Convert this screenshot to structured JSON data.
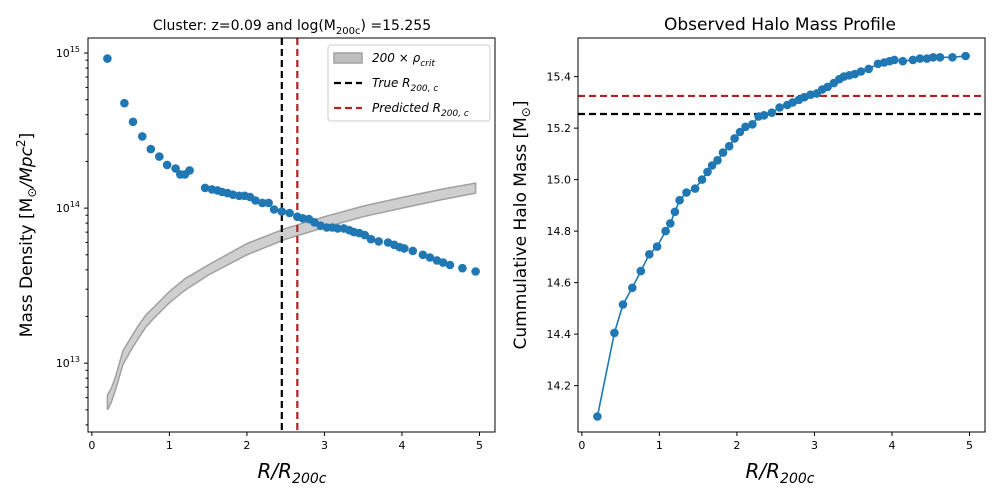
{
  "chart_data": [
    {
      "type": "scatter",
      "title": "Cluster: z=0.09 and log(M",
      "title_sub": "200c",
      "title_tail": ") =15.255",
      "xlabel": "R/R",
      "xlabel_sub": "200c",
      "ylabel": "Mass Density [M",
      "ylabel_sub": "⊙",
      "ylabel_mid": "/Mpc",
      "ylabel_sup": "2",
      "ylabel_end": "]",
      "xscale": "linear",
      "yscale": "log",
      "xlim": [
        -0.05,
        5.2
      ],
      "ylim": [
        3600000000000.0,
        1250000000000000.0
      ],
      "grid": false,
      "legend_position": "top-right",
      "xticks": [
        0,
        1,
        2,
        3,
        4,
        5
      ],
      "xtick_labels": [
        "0",
        "1",
        "2",
        "3",
        "4",
        "5"
      ],
      "yticks": [
        10000000000000.0,
        100000000000000.0,
        1000000000000000.0
      ],
      "ytick_labels": [
        {
          "base": "10",
          "exp": "13"
        },
        {
          "base": "10",
          "exp": "14"
        },
        {
          "base": "10",
          "exp": "15"
        }
      ],
      "legend": [
        {
          "label": "200 × ρ",
          "sub": "crit",
          "kind": "band",
          "color": "#bfbfbf"
        },
        {
          "label": "True R",
          "sub": "200, c",
          "kind": "dash",
          "color": "#000000"
        },
        {
          "label": "Predicted R",
          "sub": "200, c",
          "kind": "dash",
          "color": "#b22222"
        }
      ],
      "vlines": [
        {
          "x": 2.45,
          "color": "#000000",
          "name": "true-r200c-line"
        },
        {
          "x": 2.65,
          "color": "#b22222",
          "name": "predicted-r200c-line"
        }
      ],
      "band": {
        "color": "#cfcfcf",
        "edge": "#a0a0a0",
        "x": [
          0.2,
          0.25,
          0.3,
          0.4,
          0.5,
          0.6,
          0.7,
          0.8,
          1.0,
          1.2,
          1.5,
          2.0,
          2.5,
          3.0,
          3.5,
          4.0,
          4.5,
          4.95
        ],
        "upper": [
          6200000000000.0,
          6900000000000.0,
          8000000000000.0,
          12000000000000.0,
          14500000000000.0,
          17500000000000.0,
          20500000000000.0,
          23000000000000.0,
          29000000000000.0,
          35000000000000.0,
          43000000000000.0,
          59000000000000.0,
          74000000000000.0,
          88000000000000.0,
          103000000000000.0,
          117000000000000.0,
          132000000000000.0,
          145000000000000.0
        ],
        "lower": [
          5000000000000.0,
          5600000000000.0,
          6600000000000.0,
          9800000000000.0,
          12000000000000.0,
          14500000000000.0,
          17200000000000.0,
          19500000000000.0,
          24500000000000.0,
          29500000000000.0,
          37000000000000.0,
          50000000000000.0,
          63000000000000.0,
          75000000000000.0,
          88000000000000.0,
          100000000000000.0,
          113000000000000.0,
          125000000000000.0
        ]
      },
      "series": [
        {
          "color": "#1f77b4",
          "x": [
            0.2,
            0.42,
            0.53,
            0.65,
            0.76,
            0.87,
            0.97,
            1.08,
            1.14,
            1.2,
            1.26,
            1.46,
            1.55,
            1.62,
            1.68,
            1.75,
            1.82,
            1.9,
            1.97,
            2.04,
            2.11,
            2.2,
            2.28,
            2.35,
            2.45,
            2.55,
            2.65,
            2.72,
            2.8,
            2.87,
            2.95,
            3.03,
            3.1,
            3.17,
            3.25,
            3.32,
            3.38,
            3.45,
            3.52,
            3.6,
            3.7,
            3.82,
            3.9,
            3.97,
            4.03,
            4.14,
            4.27,
            4.36,
            4.45,
            4.53,
            4.62,
            4.78,
            4.95
          ],
          "y": [
            920000000000000.0,
            475000000000000.0,
            360000000000000.0,
            290000000000000.0,
            240000000000000.0,
            215000000000000.0,
            190000000000000.0,
            180000000000000.0,
            165000000000000.0,
            165000000000000.0,
            175000000000000.0,
            135000000000000.0,
            132000000000000.0,
            130000000000000.0,
            127000000000000.0,
            125000000000000.0,
            122000000000000.0,
            120000000000000.0,
            120000000000000.0,
            118000000000000.0,
            112000000000000.0,
            108000000000000.0,
            108000000000000.0,
            98000000000000.0,
            95000000000000.0,
            93000000000000.0,
            88000000000000.0,
            86000000000000.0,
            85000000000000.0,
            81000000000000.0,
            77000000000000.0,
            75000000000000.0,
            75000000000000.0,
            74000000000000.0,
            74000000000000.0,
            72000000000000.0,
            70000000000000.0,
            69000000000000.0,
            67000000000000.0,
            63000000000000.0,
            61000000000000.0,
            60000000000000.0,
            58000000000000.0,
            56000000000000.0,
            55000000000000.0,
            53000000000000.0,
            50000000000000.0,
            48000000000000.0,
            46000000000000.0,
            44500000000000.0,
            43000000000000.0,
            41000000000000.0,
            39000000000000.0
          ]
        }
      ]
    },
    {
      "type": "line",
      "title": "Observed Halo Mass Profile",
      "xlabel": "R/R",
      "xlabel_sub": "200c",
      "ylabel": "Cummulative Halo Mass [M",
      "ylabel_sub": "⊙",
      "ylabel_end": "]",
      "xscale": "linear",
      "yscale": "linear",
      "xlim": [
        -0.05,
        5.2
      ],
      "ylim": [
        14.02,
        15.55
      ],
      "grid": false,
      "xticks": [
        0,
        1,
        2,
        3,
        4,
        5
      ],
      "xtick_labels": [
        "0",
        "1",
        "2",
        "3",
        "4",
        "5"
      ],
      "yticks": [
        14.2,
        14.4,
        14.6,
        14.8,
        15.0,
        15.2,
        15.4
      ],
      "ytick_labels": [
        "14.2",
        "14.4",
        "14.6",
        "14.8",
        "15.0",
        "15.2",
        "15.4"
      ],
      "hlines": [
        {
          "y": 15.255,
          "color": "#000000",
          "name": "true-mass-line"
        },
        {
          "y": 15.325,
          "color": "#b22222",
          "name": "predicted-mass-line"
        }
      ],
      "series": [
        {
          "color": "#1f77b4",
          "x": [
            0.2,
            0.42,
            0.53,
            0.65,
            0.76,
            0.87,
            0.97,
            1.08,
            1.14,
            1.2,
            1.26,
            1.35,
            1.46,
            1.55,
            1.62,
            1.68,
            1.75,
            1.82,
            1.9,
            1.97,
            2.04,
            2.11,
            2.2,
            2.28,
            2.35,
            2.45,
            2.55,
            2.65,
            2.72,
            2.8,
            2.87,
            2.95,
            3.03,
            3.1,
            3.17,
            3.25,
            3.32,
            3.38,
            3.45,
            3.52,
            3.6,
            3.7,
            3.82,
            3.9,
            3.97,
            4.03,
            4.14,
            4.27,
            4.36,
            4.45,
            4.53,
            4.62,
            4.78,
            4.95
          ],
          "y": [
            14.08,
            14.405,
            14.515,
            14.58,
            14.645,
            14.71,
            14.74,
            14.8,
            14.83,
            14.875,
            14.92,
            14.95,
            14.965,
            15.0,
            15.03,
            15.055,
            15.075,
            15.105,
            15.13,
            15.16,
            15.185,
            15.205,
            15.215,
            15.245,
            15.25,
            15.26,
            15.28,
            15.29,
            15.3,
            15.31,
            15.32,
            15.33,
            15.335,
            15.35,
            15.36,
            15.375,
            15.39,
            15.4,
            15.405,
            15.41,
            15.42,
            15.43,
            15.45,
            15.455,
            15.46,
            15.465,
            15.46,
            15.465,
            15.47,
            15.47,
            15.475,
            15.475,
            15.475,
            15.48
          ]
        }
      ]
    }
  ]
}
